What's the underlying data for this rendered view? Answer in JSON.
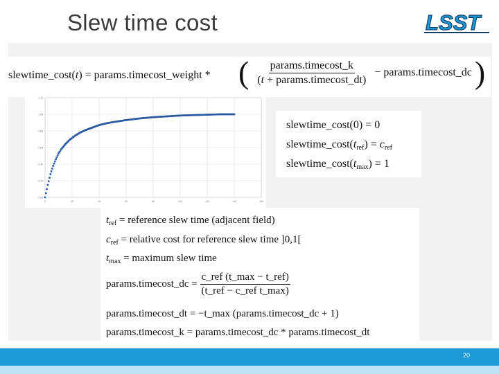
{
  "slide": {
    "title": "Slew time cost",
    "page_number": "20"
  },
  "formula": {
    "lhs": "slewtime_cost(",
    "lhs_var": "t",
    "lhs_end": ") = params.timecost_weight *",
    "numerator": "params.timecost_k",
    "den_open": "(",
    "den_var": "t",
    "den_rest": " + params.timecost_dt)",
    "minus_term": "− params.timecost_dc"
  },
  "conditions": {
    "c1": "slewtime_cost(0) = 0",
    "c2_pre": "slewtime_cost(",
    "c2_t": "t",
    "c2_tsub": "ref",
    "c2_mid": ") = ",
    "c2_c": "c",
    "c2_csub": "ref",
    "c3_pre": "slewtime_cost(",
    "c3_t": "t",
    "c3_tsub": "max",
    "c3_post": ") = 1"
  },
  "definitions": {
    "d1_var": "t",
    "d1_sub": "ref",
    "d1_text": " = reference slew time (adjacent field)",
    "d2_var": "c",
    "d2_sub": "ref",
    "d2_text": " = relative cost for reference slew time ]0,1[",
    "d3_var": "t",
    "d3_sub": "max",
    "d3_text": " = maximum slew time",
    "dc_lhs": "params.timecost_dc = ",
    "dc_num": "c_ref (t_max − t_ref)",
    "dc_den": "(t_ref − c_ref t_max)",
    "dt_eq": "params.timecost_dt = −t_max (params.timecost_dc + 1)",
    "k_eq": "params.timecost_k = params.timecost_dc * params.timecost_dt"
  },
  "chart_data": {
    "type": "scatter",
    "title": "",
    "xlabel": "",
    "ylabel": "",
    "xlim": [
      0,
      160
    ],
    "ylim": [
      0,
      1.2
    ],
    "xticks": [
      "0",
      "20",
      "40",
      "60",
      "80",
      "100",
      "120",
      "140",
      "160"
    ],
    "yticks": [
      "0.00",
      "0.20",
      "0.40",
      "0.60",
      "0.80",
      "1.00",
      "1.20"
    ],
    "grid": true,
    "marker_color": "#2b5aa0",
    "series": [
      {
        "x": [
          0,
          2,
          4,
          6,
          8,
          10,
          12,
          15,
          18,
          22,
          26,
          30,
          35,
          40,
          45,
          50,
          60,
          70,
          80,
          90,
          100,
          110,
          120,
          130,
          140
        ],
        "y": [
          0.0,
          0.15,
          0.28,
          0.38,
          0.46,
          0.53,
          0.58,
          0.64,
          0.69,
          0.74,
          0.78,
          0.81,
          0.84,
          0.87,
          0.89,
          0.905,
          0.93,
          0.95,
          0.965,
          0.975,
          0.985,
          0.99,
          0.995,
          1.0,
          1.0
        ]
      }
    ]
  }
}
